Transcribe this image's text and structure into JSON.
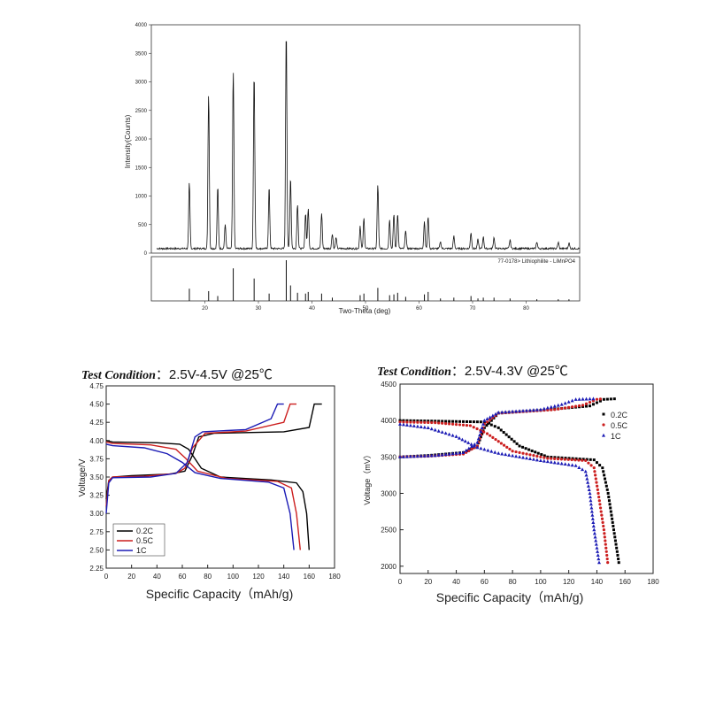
{
  "chart_data": [
    {
      "type": "line",
      "ylabel": "Intensity(Counts)",
      "xlabel": "Two-Theta (deg)",
      "xlim": [
        10,
        90
      ],
      "ylim": [
        0,
        4000
      ],
      "yticks": [
        0,
        500,
        1000,
        1500,
        2000,
        2500,
        3000,
        3500,
        4000
      ],
      "xticks": [
        20,
        30,
        40,
        50,
        60,
        70,
        80
      ],
      "baseline": 80,
      "peaks": [
        {
          "x": 17.1,
          "y": 1150
        },
        {
          "x": 20.7,
          "y": 2720
        },
        {
          "x": 22.4,
          "y": 1090
        },
        {
          "x": 23.8,
          "y": 420
        },
        {
          "x": 25.3,
          "y": 3110
        },
        {
          "x": 29.2,
          "y": 3080
        },
        {
          "x": 32.0,
          "y": 1080
        },
        {
          "x": 35.2,
          "y": 3840
        },
        {
          "x": 36.0,
          "y": 1250
        },
        {
          "x": 37.3,
          "y": 780
        },
        {
          "x": 38.8,
          "y": 620
        },
        {
          "x": 39.3,
          "y": 700
        },
        {
          "x": 41.8,
          "y": 620
        },
        {
          "x": 43.8,
          "y": 260
        },
        {
          "x": 44.5,
          "y": 200
        },
        {
          "x": 49.0,
          "y": 400
        },
        {
          "x": 49.7,
          "y": 530
        },
        {
          "x": 52.3,
          "y": 1120
        },
        {
          "x": 54.5,
          "y": 520
        },
        {
          "x": 55.3,
          "y": 600
        },
        {
          "x": 56.0,
          "y": 620
        },
        {
          "x": 57.5,
          "y": 330
        },
        {
          "x": 61.0,
          "y": 480
        },
        {
          "x": 61.7,
          "y": 560
        },
        {
          "x": 64.0,
          "y": 120
        },
        {
          "x": 66.5,
          "y": 220
        },
        {
          "x": 69.7,
          "y": 280
        },
        {
          "x": 71.0,
          "y": 160
        },
        {
          "x": 72.0,
          "y": 210
        },
        {
          "x": 74.0,
          "y": 200
        },
        {
          "x": 77.0,
          "y": 150
        },
        {
          "x": 82.0,
          "y": 120
        },
        {
          "x": 86.0,
          "y": 110
        },
        {
          "x": 88.0,
          "y": 100
        }
      ],
      "reference_label": "77-0178> Lithiophilite - LiMnPO4",
      "reference_lines": [
        {
          "x": 17.1,
          "h": 0.3
        },
        {
          "x": 20.7,
          "h": 0.24
        },
        {
          "x": 22.4,
          "h": 0.12
        },
        {
          "x": 25.3,
          "h": 0.8
        },
        {
          "x": 29.2,
          "h": 0.55
        },
        {
          "x": 32.0,
          "h": 0.18
        },
        {
          "x": 35.2,
          "h": 1.0
        },
        {
          "x": 36.0,
          "h": 0.38
        },
        {
          "x": 37.3,
          "h": 0.2
        },
        {
          "x": 38.8,
          "h": 0.18
        },
        {
          "x": 39.3,
          "h": 0.22
        },
        {
          "x": 41.8,
          "h": 0.18
        },
        {
          "x": 43.8,
          "h": 0.08
        },
        {
          "x": 49.0,
          "h": 0.14
        },
        {
          "x": 49.7,
          "h": 0.18
        },
        {
          "x": 52.3,
          "h": 0.32
        },
        {
          "x": 54.5,
          "h": 0.14
        },
        {
          "x": 55.3,
          "h": 0.16
        },
        {
          "x": 56.0,
          "h": 0.2
        },
        {
          "x": 57.5,
          "h": 0.1
        },
        {
          "x": 61.0,
          "h": 0.16
        },
        {
          "x": 61.7,
          "h": 0.22
        },
        {
          "x": 64.0,
          "h": 0.06
        },
        {
          "x": 66.5,
          "h": 0.08
        },
        {
          "x": 69.7,
          "h": 0.12
        },
        {
          "x": 71.0,
          "h": 0.06
        },
        {
          "x": 72.0,
          "h": 0.08
        },
        {
          "x": 74.0,
          "h": 0.08
        },
        {
          "x": 77.0,
          "h": 0.06
        },
        {
          "x": 82.0,
          "h": 0.04
        },
        {
          "x": 86.0,
          "h": 0.04
        },
        {
          "x": 88.0,
          "h": 0.04
        }
      ]
    },
    {
      "type": "line",
      "condition_label": "Test Condition",
      "condition_value": "：2.5V-4.5V  @25℃",
      "xlabel": "Specific Capacity（mAh/g)",
      "ylabel": "Voltage/V",
      "xlim": [
        0,
        180
      ],
      "ylim": [
        2.25,
        4.75
      ],
      "xticks": [
        0,
        20,
        40,
        60,
        80,
        100,
        120,
        140,
        160,
        180
      ],
      "yticks": [
        "2.25",
        "2.50",
        "2.75",
        "3.00",
        "3.25",
        "3.50",
        "3.75",
        "4.00",
        "4.25",
        "4.50",
        "4.75"
      ],
      "legend": [
        "0.2C",
        "0.5C",
        "1C"
      ],
      "colors": [
        "#000000",
        "#cc1f1f",
        "#1b1bb5"
      ],
      "series": [
        {
          "name": "0.2C",
          "charge": [
            [
              0,
              3.2
            ],
            [
              2,
              3.45
            ],
            [
              5,
              3.5
            ],
            [
              20,
              3.52
            ],
            [
              50,
              3.54
            ],
            [
              62,
              3.58
            ],
            [
              68,
              3.8
            ],
            [
              73,
              4.05
            ],
            [
              85,
              4.1
            ],
            [
              140,
              4.12
            ],
            [
              160,
              4.18
            ],
            [
              164,
              4.5
            ],
            [
              170,
              4.5
            ]
          ],
          "discharge": [
            [
              0,
              4.0
            ],
            [
              5,
              3.98
            ],
            [
              40,
              3.97
            ],
            [
              58,
              3.95
            ],
            [
              65,
              3.88
            ],
            [
              75,
              3.62
            ],
            [
              90,
              3.5
            ],
            [
              130,
              3.46
            ],
            [
              150,
              3.42
            ],
            [
              155,
              3.3
            ],
            [
              158,
              3.0
            ],
            [
              160,
              2.5
            ]
          ]
        },
        {
          "name": "0.5C",
          "charge": [
            [
              0,
              3.1
            ],
            [
              2,
              3.45
            ],
            [
              5,
              3.5
            ],
            [
              30,
              3.51
            ],
            [
              55,
              3.55
            ],
            [
              62,
              3.62
            ],
            [
              68,
              3.9
            ],
            [
              78,
              4.1
            ],
            [
              110,
              4.13
            ],
            [
              140,
              4.25
            ],
            [
              145,
              4.5
            ],
            [
              150,
              4.5
            ]
          ],
          "discharge": [
            [
              0,
              3.98
            ],
            [
              5,
              3.96
            ],
            [
              35,
              3.94
            ],
            [
              55,
              3.88
            ],
            [
              63,
              3.75
            ],
            [
              72,
              3.58
            ],
            [
              95,
              3.48
            ],
            [
              135,
              3.44
            ],
            [
              146,
              3.35
            ],
            [
              150,
              3.0
            ],
            [
              153,
              2.5
            ]
          ]
        },
        {
          "name": "1C",
          "charge": [
            [
              0,
              3.0
            ],
            [
              2,
              3.42
            ],
            [
              5,
              3.49
            ],
            [
              35,
              3.5
            ],
            [
              55,
              3.55
            ],
            [
              64,
              3.7
            ],
            [
              70,
              4.05
            ],
            [
              76,
              4.12
            ],
            [
              110,
              4.15
            ],
            [
              130,
              4.3
            ],
            [
              135,
              4.5
            ],
            [
              140,
              4.5
            ]
          ],
          "discharge": [
            [
              0,
              3.95
            ],
            [
              5,
              3.93
            ],
            [
              30,
              3.9
            ],
            [
              48,
              3.82
            ],
            [
              60,
              3.7
            ],
            [
              70,
              3.56
            ],
            [
              90,
              3.48
            ],
            [
              128,
              3.43
            ],
            [
              140,
              3.35
            ],
            [
              145,
              3.0
            ],
            [
              148,
              2.5
            ]
          ]
        }
      ]
    },
    {
      "type": "scatter",
      "condition_label": "Test Condition",
      "condition_value": "：2.5V-4.3V  @25℃",
      "xlabel": "Specific Capacity（mAh/g)",
      "ylabel": "Voltage（mV）",
      "xlim": [
        0,
        180
      ],
      "ylim": [
        1900,
        4500
      ],
      "xticks": [
        0,
        20,
        40,
        60,
        80,
        100,
        120,
        140,
        160,
        180
      ],
      "yticks": [
        2000,
        2500,
        3000,
        3500,
        4000,
        4500
      ],
      "legend": [
        "0.2C",
        "0.5C",
        "1C"
      ],
      "markers": [
        "square",
        "circle",
        "triangle"
      ],
      "colors": [
        "#000000",
        "#cc1f1f",
        "#1b1bb5"
      ],
      "series": [
        {
          "name": "0.2C",
          "charge": [
            [
              0,
              3500
            ],
            [
              20,
              3520
            ],
            [
              45,
              3560
            ],
            [
              55,
              3650
            ],
            [
              60,
              3900
            ],
            [
              70,
              4100
            ],
            [
              100,
              4140
            ],
            [
              135,
              4200
            ],
            [
              145,
              4290
            ],
            [
              155,
              4300
            ]
          ],
          "discharge": [
            [
              0,
              4000
            ],
            [
              30,
              3990
            ],
            [
              60,
              3980
            ],
            [
              70,
              3900
            ],
            [
              85,
              3650
            ],
            [
              105,
              3500
            ],
            [
              138,
              3460
            ],
            [
              144,
              3350
            ],
            [
              148,
              3000
            ],
            [
              152,
              2500
            ],
            [
              156,
              2000
            ]
          ]
        },
        {
          "name": "0.5C",
          "charge": [
            [
              0,
              3500
            ],
            [
              20,
              3510
            ],
            [
              45,
              3540
            ],
            [
              55,
              3650
            ],
            [
              60,
              3950
            ],
            [
              70,
              4100
            ],
            [
              110,
              4150
            ],
            [
              130,
              4210
            ],
            [
              140,
              4290
            ],
            [
              145,
              4300
            ]
          ],
          "discharge": [
            [
              0,
              3980
            ],
            [
              25,
              3970
            ],
            [
              50,
              3930
            ],
            [
              62,
              3820
            ],
            [
              80,
              3580
            ],
            [
              105,
              3480
            ],
            [
              132,
              3450
            ],
            [
              138,
              3350
            ],
            [
              141,
              3000
            ],
            [
              145,
              2500
            ],
            [
              148,
              2000
            ]
          ]
        },
        {
          "name": "1C",
          "charge": [
            [
              0,
              3500
            ],
            [
              25,
              3520
            ],
            [
              45,
              3560
            ],
            [
              55,
              3700
            ],
            [
              60,
              4000
            ],
            [
              70,
              4110
            ],
            [
              100,
              4150
            ],
            [
              115,
              4220
            ],
            [
              125,
              4290
            ],
            [
              140,
              4300
            ]
          ],
          "discharge": [
            [
              0,
              3950
            ],
            [
              20,
              3900
            ],
            [
              40,
              3780
            ],
            [
              55,
              3630
            ],
            [
              70,
              3550
            ],
            [
              100,
              3450
            ],
            [
              125,
              3380
            ],
            [
              132,
              3300
            ],
            [
              135,
              3000
            ],
            [
              138,
              2500
            ],
            [
              142,
              2000
            ]
          ]
        }
      ]
    }
  ]
}
